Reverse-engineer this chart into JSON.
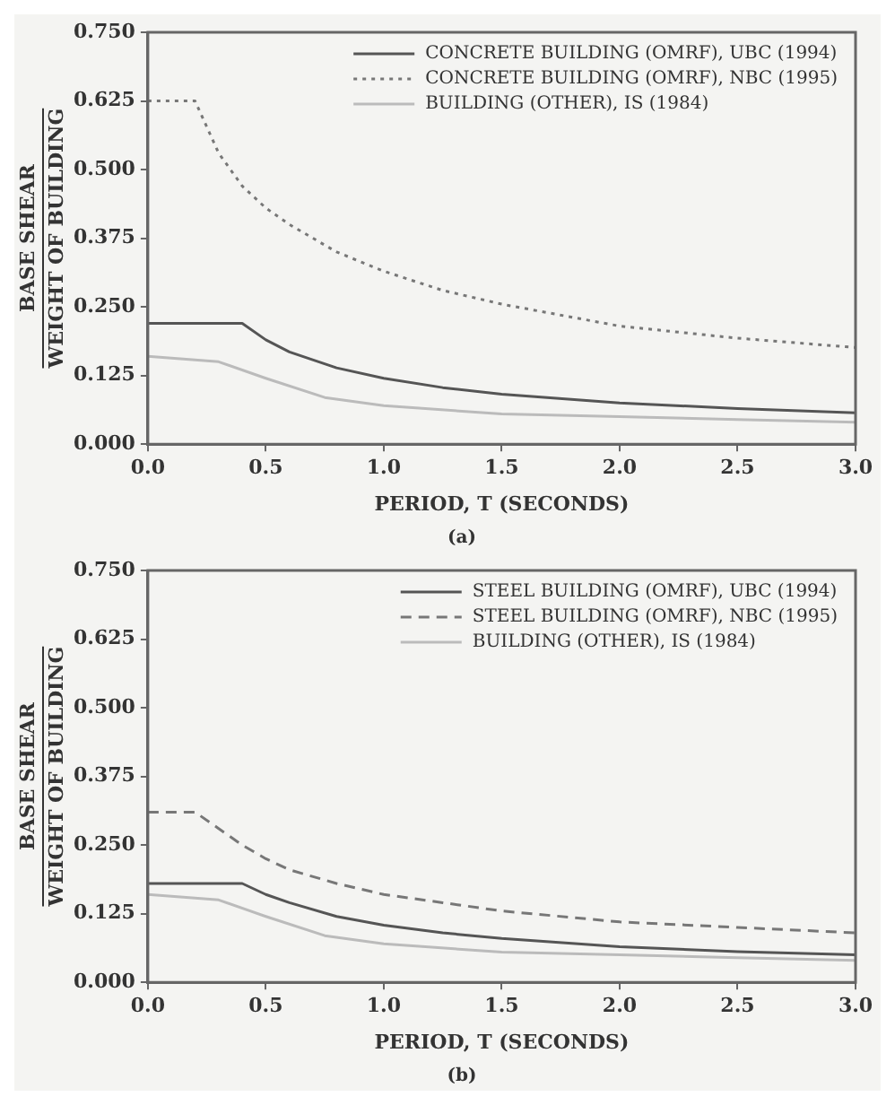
{
  "chart_data": [
    {
      "type": "line",
      "title": "(a)",
      "xlabel": "PERIOD, T (SECONDS)",
      "ylabel": "BASE SHEAR\nWEIGHT OF BUILDING",
      "xlim": [
        0,
        3
      ],
      "xticks": [
        {
          "value": 0,
          "label": "0.0"
        },
        {
          "value": 0.5,
          "label": "0.5"
        },
        {
          "value": 1,
          "label": "1.0"
        },
        {
          "value": 1.5,
          "label": "1.5"
        },
        {
          "value": 2,
          "label": "2.0"
        },
        {
          "value": 2.5,
          "label": "2.5"
        },
        {
          "value": 3,
          "label": "3.0"
        }
      ],
      "ylim": [
        0,
        0.75
      ],
      "yticks": [
        {
          "value": 0,
          "label": "0.000"
        },
        {
          "value": 0.125,
          "label": "0.125"
        },
        {
          "value": 0.25,
          "label": "0.250"
        },
        {
          "value": 0.375,
          "label": "0.375"
        },
        {
          "value": 0.5,
          "label": "0.500"
        },
        {
          "value": 0.625,
          "label": "0.625"
        },
        {
          "value": 0.75,
          "label": "0.750"
        }
      ],
      "grid": false,
      "legend": "top right",
      "marker": "none",
      "series": [
        {
          "name": "CONCRETE BUILDING (OMRF), UBC (1994)",
          "color": "#555555",
          "line_style": "solid",
          "x": [
            0,
            0.4,
            0.5,
            0.6,
            0.8,
            1.0,
            1.25,
            1.5,
            2.0,
            2.5,
            3.0
          ],
          "values": [
            0.22,
            0.22,
            0.19,
            0.168,
            0.139,
            0.12,
            0.103,
            0.091,
            0.075,
            0.065,
            0.057
          ]
        },
        {
          "name": "CONCRETE BUILDING (OMRF), NBC (1995)",
          "color": "#777777",
          "line_style": "dotted",
          "x": [
            0,
            0.2,
            0.3,
            0.4,
            0.5,
            0.6,
            0.8,
            1.0,
            1.25,
            1.5,
            2.0,
            2.5,
            3.0
          ],
          "values": [
            0.625,
            0.625,
            0.53,
            0.47,
            0.43,
            0.4,
            0.35,
            0.315,
            0.28,
            0.255,
            0.215,
            0.193,
            0.176
          ]
        },
        {
          "name": "BUILDING (OTHER), IS (1984)",
          "color": "#bbbbbb",
          "line_style": "solid",
          "x": [
            0,
            0.3,
            0.5,
            0.75,
            1.0,
            1.5,
            2.0,
            2.5,
            3.0
          ],
          "values": [
            0.16,
            0.15,
            0.12,
            0.085,
            0.07,
            0.055,
            0.05,
            0.045,
            0.04
          ]
        }
      ]
    },
    {
      "type": "line",
      "title": "(b)",
      "xlabel": "PERIOD, T (SECONDS)",
      "ylabel": "BASE SHEAR\nWEIGHT OF BUILDING",
      "xlim": [
        0,
        3
      ],
      "xticks": [
        {
          "value": 0,
          "label": "0.0"
        },
        {
          "value": 0.5,
          "label": "0.5"
        },
        {
          "value": 1,
          "label": "1.0"
        },
        {
          "value": 1.5,
          "label": "1.5"
        },
        {
          "value": 2,
          "label": "2.0"
        },
        {
          "value": 2.5,
          "label": "2.5"
        },
        {
          "value": 3,
          "label": "3.0"
        }
      ],
      "ylim": [
        0,
        0.75
      ],
      "yticks": [
        {
          "value": 0,
          "label": "0.000"
        },
        {
          "value": 0.125,
          "label": "0.125"
        },
        {
          "value": 0.25,
          "label": "0.250"
        },
        {
          "value": 0.375,
          "label": "0.375"
        },
        {
          "value": 0.5,
          "label": "0.500"
        },
        {
          "value": 0.625,
          "label": "0.625"
        },
        {
          "value": 0.75,
          "label": "0.750"
        }
      ],
      "grid": false,
      "legend": "top right",
      "marker": "none",
      "series": [
        {
          "name": "STEEL BUILDING (OMRF), UBC (1994)",
          "color": "#555555",
          "line_style": "solid",
          "x": [
            0,
            0.4,
            0.5,
            0.6,
            0.8,
            1.0,
            1.25,
            1.5,
            2.0,
            2.5,
            3.0
          ],
          "values": [
            0.18,
            0.18,
            0.16,
            0.145,
            0.12,
            0.104,
            0.09,
            0.08,
            0.065,
            0.056,
            0.05
          ]
        },
        {
          "name": "STEEL BUILDING (OMRF), NBC (1995)",
          "color": "#777777",
          "line_style": "dashed",
          "x": [
            0,
            0.2,
            0.3,
            0.4,
            0.5,
            0.6,
            0.8,
            1.0,
            1.25,
            1.5,
            2.0,
            2.5,
            3.0
          ],
          "values": [
            0.31,
            0.31,
            0.28,
            0.25,
            0.225,
            0.205,
            0.18,
            0.16,
            0.145,
            0.13,
            0.11,
            0.1,
            0.09
          ]
        },
        {
          "name": "BUILDING (OTHER), IS (1984)",
          "color": "#bbbbbb",
          "line_style": "solid",
          "x": [
            0,
            0.3,
            0.5,
            0.75,
            1.0,
            1.5,
            2.0,
            2.5,
            3.0
          ],
          "values": [
            0.16,
            0.15,
            0.12,
            0.085,
            0.07,
            0.055,
            0.05,
            0.045,
            0.04
          ]
        }
      ]
    }
  ]
}
